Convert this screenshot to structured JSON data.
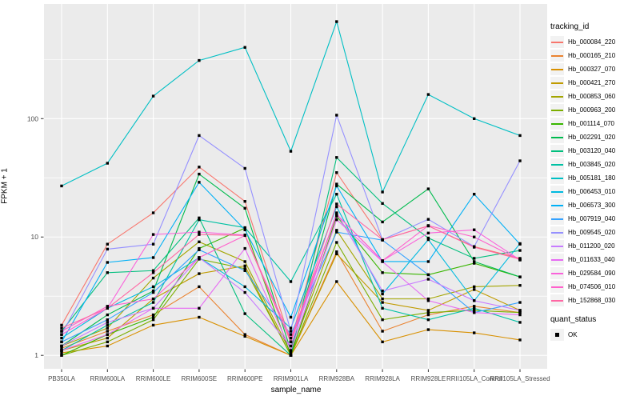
{
  "chart_data": {
    "type": "line",
    "title": "",
    "xlabel": "sample_name",
    "ylabel": "FPKM + 1",
    "y_scale": "log10",
    "y_ticks": [
      1,
      10,
      100
    ],
    "y_tick_labels": [
      "1",
      "10",
      "100"
    ],
    "ylim": [
      0.77,
      930
    ],
    "grid": "on",
    "panel_bg": "#EBEBEB",
    "grid_color": "#FFFFFF",
    "point_color": "#000000",
    "legend_position": "right",
    "categories": [
      "PB350LA",
      "RRIM600LA",
      "RRIM600LE",
      "RRIM600SE",
      "RRIM600PE",
      "RRIM901LA",
      "RRIM928BA",
      "RRIM928LA",
      "RRIM928LE",
      "RRII105LA_Control",
      "RRII105LA_Stressed"
    ],
    "series": [
      {
        "name": "Hb_000084_220",
        "color": "#F8766D",
        "values": [
          1.8,
          8.7,
          16.0,
          39,
          20,
          1.3,
          35,
          9.5,
          12.4,
          8.3,
          6.6
        ]
      },
      {
        "name": "Hb_000165_210",
        "color": "#EA8331",
        "values": [
          1.15,
          1.6,
          2.2,
          3.8,
          1.5,
          1.0,
          7.5,
          1.6,
          2.2,
          2.6,
          2.3
        ]
      },
      {
        "name": "Hb_000327_070",
        "color": "#D89000",
        "values": [
          1.05,
          1.2,
          1.8,
          2.1,
          1.45,
          1.0,
          4.2,
          1.3,
          1.65,
          1.55,
          1.35
        ]
      },
      {
        "name": "Hb_000421_270",
        "color": "#C09B00",
        "values": [
          1.1,
          1.4,
          3.0,
          4.9,
          5.7,
          1.0,
          7.2,
          2.8,
          2.4,
          3.6,
          2.4
        ]
      },
      {
        "name": "Hb_000853_060",
        "color": "#A3A500",
        "values": [
          1.2,
          1.7,
          4.5,
          9.1,
          6.2,
          1.05,
          11.4,
          3.0,
          3.0,
          3.8,
          3.9
        ]
      },
      {
        "name": "Hb_000963_200",
        "color": "#7CAE00",
        "values": [
          1.0,
          1.3,
          2.0,
          6.5,
          5.4,
          1.0,
          9.0,
          2.0,
          2.3,
          2.4,
          2.3
        ]
      },
      {
        "name": "Hb_001114_070",
        "color": "#39B600",
        "values": [
          1.0,
          1.5,
          2.1,
          8.0,
          11.9,
          1.0,
          15.0,
          5.0,
          4.8,
          6.0,
          4.6
        ]
      },
      {
        "name": "Hb_002291_020",
        "color": "#00BB4E",
        "values": [
          1.2,
          2.2,
          3.5,
          34,
          17.5,
          1.1,
          28,
          13.4,
          25.5,
          6.2,
          4.6
        ]
      },
      {
        "name": "Hb_003120_040",
        "color": "#00BF7D",
        "values": [
          1.6,
          5.0,
          5.2,
          14.5,
          2.25,
          1.0,
          47,
          19.2,
          9.8,
          6.6,
          7.7
        ]
      },
      {
        "name": "Hb_003845_020",
        "color": "#00C1A3",
        "values": [
          1.1,
          1.8,
          2.8,
          14.0,
          12.0,
          4.2,
          23,
          2.5,
          2.0,
          2.5,
          1.9
        ]
      },
      {
        "name": "Hb_005181_180",
        "color": "#00BFC4",
        "values": [
          27,
          42,
          155,
          310,
          400,
          53,
          660,
          24,
          160,
          100,
          72
        ]
      },
      {
        "name": "Hb_006453_010",
        "color": "#00BAE0",
        "values": [
          1.4,
          2.5,
          3.8,
          6.7,
          3.8,
          1.7,
          18,
          3.3,
          9.5,
          2.9,
          8.8
        ]
      },
      {
        "name": "Hb_006573_300",
        "color": "#00B0F6",
        "values": [
          1.3,
          6.1,
          6.7,
          29,
          11.5,
          2.1,
          27,
          6.2,
          6.2,
          23,
          8.7
        ]
      },
      {
        "name": "Hb_007919_040",
        "color": "#35A2FF",
        "values": [
          1.3,
          2.0,
          3.4,
          7.8,
          5.2,
          1.5,
          11,
          9.4,
          4.8,
          2.3,
          2.8
        ]
      },
      {
        "name": "Hb_009545_020",
        "color": "#9590FF",
        "values": [
          1.5,
          7.9,
          8.7,
          72,
          38,
          1.6,
          107,
          9.5,
          14.1,
          8.3,
          44
        ]
      },
      {
        "name": "Hb_011200_020",
        "color": "#C77CFF",
        "values": [
          1.2,
          1.9,
          2.5,
          6.7,
          3.4,
          1.2,
          16,
          3.5,
          4.4,
          2.9,
          2.4
        ]
      },
      {
        "name": "Hb_011633_040",
        "color": "#E76BF3",
        "values": [
          1.1,
          1.5,
          2.5,
          2.5,
          8.0,
          1.1,
          14,
          6.2,
          2.9,
          2.3,
          2.2
        ]
      },
      {
        "name": "Hb_029584_090",
        "color": "#FA62DB",
        "values": [
          1.5,
          2.5,
          10.5,
          11,
          10.4,
          1.3,
          15.5,
          6.3,
          10.8,
          11.5,
          6.4
        ]
      },
      {
        "name": "Hb_074506_010",
        "color": "#FF61CC",
        "values": [
          1.6,
          2.6,
          3.0,
          6.7,
          10.3,
          1.4,
          15.5,
          6.3,
          12.5,
          10.0,
          6.4
        ]
      },
      {
        "name": "Hb_152868_030",
        "color": "#FF67A4",
        "values": [
          1.7,
          2.5,
          5.0,
          10.5,
          10.3,
          1.3,
          19,
          9.5,
          12.4,
          8.2,
          6.5
        ]
      }
    ],
    "legend": {
      "tracking_title": "tracking_id",
      "quant_title": "quant_status",
      "quant_items": [
        {
          "label": "OK",
          "marker": "black-square"
        }
      ]
    }
  }
}
